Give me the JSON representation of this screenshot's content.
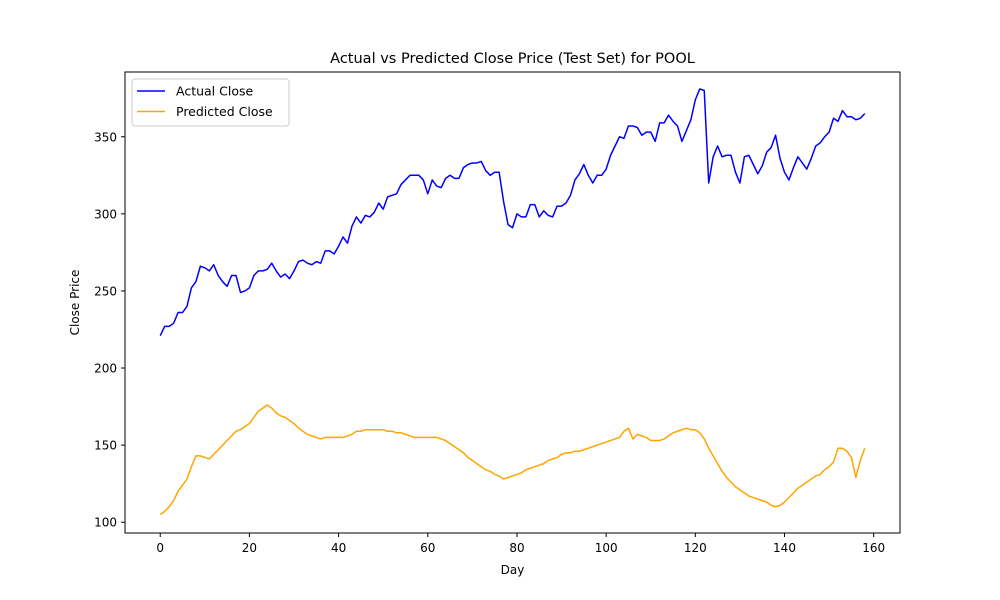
{
  "chart_data": {
    "type": "line",
    "title": "Actual vs Predicted Close Price (Test Set) for POOL",
    "xlabel": "Day",
    "ylabel": "Close Price",
    "xlim": [
      -7.9,
      165.9
    ],
    "ylim": [
      93,
      392
    ],
    "xticks": [
      0,
      20,
      40,
      60,
      80,
      100,
      120,
      140,
      160
    ],
    "yticks": [
      100,
      150,
      200,
      250,
      300,
      350
    ],
    "grid": false,
    "legend_position": "top-left",
    "series": [
      {
        "name": "Actual Close",
        "color": "#0000ff",
        "points": [
          [
            0,
            221
          ],
          [
            1,
            227
          ],
          [
            2,
            227
          ],
          [
            3,
            229
          ],
          [
            4,
            236
          ],
          [
            5,
            236
          ],
          [
            6,
            240
          ],
          [
            7,
            252
          ],
          [
            8,
            256
          ],
          [
            9,
            266
          ],
          [
            10,
            265
          ],
          [
            11,
            263
          ],
          [
            12,
            267
          ],
          [
            13,
            260
          ],
          [
            14,
            256
          ],
          [
            15,
            253
          ],
          [
            16,
            260
          ],
          [
            17,
            260
          ],
          [
            18,
            249
          ],
          [
            19,
            250
          ],
          [
            20,
            252
          ],
          [
            21,
            260
          ],
          [
            22,
            263
          ],
          [
            23,
            263
          ],
          [
            24,
            264
          ],
          [
            25,
            268
          ],
          [
            26,
            263
          ],
          [
            27,
            259
          ],
          [
            28,
            261
          ],
          [
            29,
            258
          ],
          [
            30,
            263
          ],
          [
            31,
            269
          ],
          [
            32,
            270
          ],
          [
            33,
            268
          ],
          [
            34,
            267
          ],
          [
            35,
            269
          ],
          [
            36,
            268
          ],
          [
            37,
            276
          ],
          [
            38,
            276
          ],
          [
            39,
            274
          ],
          [
            40,
            279
          ],
          [
            41,
            285
          ],
          [
            42,
            281
          ],
          [
            43,
            292
          ],
          [
            44,
            298
          ],
          [
            45,
            294
          ],
          [
            46,
            299
          ],
          [
            47,
            298
          ],
          [
            48,
            301
          ],
          [
            49,
            307
          ],
          [
            50,
            303
          ],
          [
            51,
            311
          ],
          [
            52,
            312
          ],
          [
            53,
            313
          ],
          [
            54,
            319
          ],
          [
            55,
            322
          ],
          [
            56,
            325
          ],
          [
            57,
            325
          ],
          [
            58,
            325
          ],
          [
            59,
            322
          ],
          [
            60,
            313
          ],
          [
            61,
            322
          ],
          [
            62,
            318
          ],
          [
            63,
            317
          ],
          [
            64,
            323
          ],
          [
            65,
            325
          ],
          [
            66,
            323
          ],
          [
            67,
            323
          ],
          [
            68,
            330
          ],
          [
            69,
            332
          ],
          [
            70,
            333
          ],
          [
            71,
            333
          ],
          [
            72,
            334
          ],
          [
            73,
            328
          ],
          [
            74,
            325
          ],
          [
            75,
            327
          ],
          [
            76,
            327
          ],
          [
            77,
            308
          ],
          [
            78,
            293
          ],
          [
            79,
            291
          ],
          [
            80,
            300
          ],
          [
            81,
            298
          ],
          [
            82,
            298
          ],
          [
            83,
            306
          ],
          [
            84,
            306
          ],
          [
            85,
            298
          ],
          [
            86,
            302
          ],
          [
            87,
            299
          ],
          [
            88,
            298
          ],
          [
            89,
            305
          ],
          [
            90,
            305
          ],
          [
            91,
            307
          ],
          [
            92,
            312
          ],
          [
            93,
            322
          ],
          [
            94,
            326
          ],
          [
            95,
            332
          ],
          [
            96,
            325
          ],
          [
            97,
            320
          ],
          [
            98,
            325
          ],
          [
            99,
            325
          ],
          [
            100,
            329
          ],
          [
            101,
            338
          ],
          [
            102,
            344
          ],
          [
            103,
            350
          ],
          [
            104,
            349
          ],
          [
            105,
            357
          ],
          [
            106,
            357
          ],
          [
            107,
            356
          ],
          [
            108,
            351
          ],
          [
            109,
            353
          ],
          [
            110,
            353
          ],
          [
            111,
            347
          ],
          [
            112,
            359
          ],
          [
            113,
            359
          ],
          [
            114,
            364
          ],
          [
            115,
            360
          ],
          [
            116,
            357
          ],
          [
            117,
            347
          ],
          [
            118,
            354
          ],
          [
            119,
            361
          ],
          [
            120,
            374
          ],
          [
            121,
            381
          ],
          [
            122,
            380
          ],
          [
            123,
            320
          ],
          [
            124,
            337
          ],
          [
            125,
            344
          ],
          [
            126,
            337
          ],
          [
            127,
            338
          ],
          [
            128,
            338
          ],
          [
            129,
            327
          ],
          [
            130,
            320
          ],
          [
            131,
            337
          ],
          [
            132,
            338
          ],
          [
            133,
            332
          ],
          [
            134,
            326
          ],
          [
            135,
            331
          ],
          [
            136,
            340
          ],
          [
            137,
            343
          ],
          [
            138,
            351
          ],
          [
            139,
            336
          ],
          [
            140,
            327
          ],
          [
            141,
            322
          ],
          [
            142,
            330
          ],
          [
            143,
            337
          ],
          [
            144,
            333
          ],
          [
            145,
            329
          ],
          [
            146,
            336
          ],
          [
            147,
            344
          ],
          [
            148,
            346
          ],
          [
            149,
            350
          ],
          [
            150,
            353
          ],
          [
            151,
            362
          ],
          [
            152,
            360
          ],
          [
            153,
            367
          ],
          [
            154,
            363
          ],
          [
            155,
            363
          ],
          [
            156,
            361
          ],
          [
            157,
            362
          ],
          [
            158,
            365
          ]
        ]
      },
      {
        "name": "Predicted Close",
        "color": "#ffa500",
        "points": [
          [
            0,
            105
          ],
          [
            1,
            107
          ],
          [
            2,
            110
          ],
          [
            3,
            114
          ],
          [
            4,
            120
          ],
          [
            5,
            124
          ],
          [
            6,
            128
          ],
          [
            7,
            136
          ],
          [
            8,
            143
          ],
          [
            9,
            143
          ],
          [
            10,
            142
          ],
          [
            11,
            141
          ],
          [
            12,
            144
          ],
          [
            13,
            147
          ],
          [
            14,
            150
          ],
          [
            15,
            153
          ],
          [
            16,
            156
          ],
          [
            17,
            159
          ],
          [
            18,
            160
          ],
          [
            19,
            162
          ],
          [
            20,
            164
          ],
          [
            21,
            168
          ],
          [
            22,
            172
          ],
          [
            23,
            174
          ],
          [
            24,
            176
          ],
          [
            25,
            174
          ],
          [
            26,
            171
          ],
          [
            27,
            169
          ],
          [
            28,
            168
          ],
          [
            29,
            166
          ],
          [
            30,
            164
          ],
          [
            31,
            161
          ],
          [
            32,
            159
          ],
          [
            33,
            157
          ],
          [
            34,
            156
          ],
          [
            35,
            155
          ],
          [
            36,
            154
          ],
          [
            37,
            155
          ],
          [
            38,
            155
          ],
          [
            39,
            155
          ],
          [
            40,
            155
          ],
          [
            41,
            155
          ],
          [
            42,
            156
          ],
          [
            43,
            157
          ],
          [
            44,
            159
          ],
          [
            45,
            159
          ],
          [
            46,
            160
          ],
          [
            47,
            160
          ],
          [
            48,
            160
          ],
          [
            49,
            160
          ],
          [
            50,
            160
          ],
          [
            51,
            159
          ],
          [
            52,
            159
          ],
          [
            53,
            158
          ],
          [
            54,
            158
          ],
          [
            55,
            157
          ],
          [
            56,
            156
          ],
          [
            57,
            155
          ],
          [
            58,
            155
          ],
          [
            59,
            155
          ],
          [
            60,
            155
          ],
          [
            61,
            155
          ],
          [
            62,
            155
          ],
          [
            63,
            154
          ],
          [
            64,
            153
          ],
          [
            65,
            151
          ],
          [
            66,
            149
          ],
          [
            67,
            147
          ],
          [
            68,
            145
          ],
          [
            69,
            142
          ],
          [
            70,
            140
          ],
          [
            71,
            138
          ],
          [
            72,
            136
          ],
          [
            73,
            134
          ],
          [
            74,
            133
          ],
          [
            75,
            131
          ],
          [
            76,
            130
          ],
          [
            77,
            128
          ],
          [
            78,
            129
          ],
          [
            79,
            130
          ],
          [
            80,
            131
          ],
          [
            81,
            132
          ],
          [
            82,
            134
          ],
          [
            83,
            135
          ],
          [
            84,
            136
          ],
          [
            85,
            137
          ],
          [
            86,
            138
          ],
          [
            87,
            140
          ],
          [
            88,
            141
          ],
          [
            89,
            142
          ],
          [
            90,
            144
          ],
          [
            91,
            145
          ],
          [
            92,
            145
          ],
          [
            93,
            146
          ],
          [
            94,
            146
          ],
          [
            95,
            147
          ],
          [
            96,
            148
          ],
          [
            97,
            149
          ],
          [
            98,
            150
          ],
          [
            99,
            151
          ],
          [
            100,
            152
          ],
          [
            101,
            153
          ],
          [
            102,
            154
          ],
          [
            103,
            155
          ],
          [
            104,
            159
          ],
          [
            105,
            161
          ],
          [
            106,
            154
          ],
          [
            107,
            157
          ],
          [
            108,
            156
          ],
          [
            109,
            155
          ],
          [
            110,
            153
          ],
          [
            111,
            153
          ],
          [
            112,
            153
          ],
          [
            113,
            154
          ],
          [
            114,
            156
          ],
          [
            115,
            158
          ],
          [
            116,
            159
          ],
          [
            117,
            160
          ],
          [
            118,
            161
          ],
          [
            119,
            160
          ],
          [
            120,
            160
          ],
          [
            121,
            158
          ],
          [
            122,
            154
          ],
          [
            123,
            148
          ],
          [
            124,
            143
          ],
          [
            125,
            138
          ],
          [
            126,
            133
          ],
          [
            127,
            129
          ],
          [
            128,
            126
          ],
          [
            129,
            123
          ],
          [
            130,
            121
          ],
          [
            131,
            119
          ],
          [
            132,
            117
          ],
          [
            133,
            116
          ],
          [
            134,
            115
          ],
          [
            135,
            114
          ],
          [
            136,
            113
          ],
          [
            137,
            111
          ],
          [
            138,
            110
          ],
          [
            139,
            111
          ],
          [
            140,
            113
          ],
          [
            141,
            116
          ],
          [
            142,
            119
          ],
          [
            143,
            122
          ],
          [
            144,
            124
          ],
          [
            145,
            126
          ],
          [
            146,
            128
          ],
          [
            147,
            130
          ],
          [
            148,
            131
          ],
          [
            149,
            134
          ],
          [
            150,
            136
          ],
          [
            151,
            139
          ],
          [
            152,
            148
          ],
          [
            153,
            148
          ],
          [
            154,
            146
          ],
          [
            155,
            142
          ],
          [
            156,
            129
          ],
          [
            157,
            140
          ],
          [
            158,
            148
          ]
        ]
      }
    ]
  }
}
